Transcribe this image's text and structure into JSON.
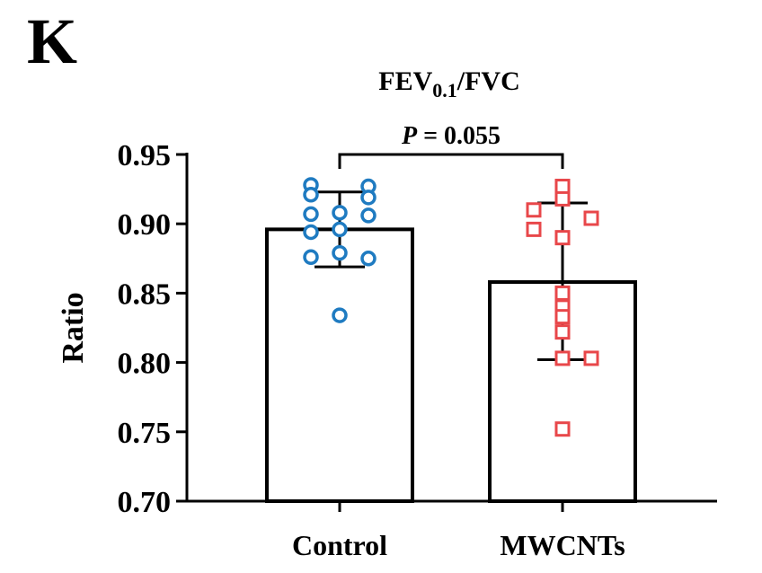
{
  "panel_label": "K",
  "chart_data": {
    "type": "bar",
    "title": "FEV",
    "title_subscript": "0.1",
    "title_suffix": "/FVC",
    "ylabel": "Ratio",
    "xlabel": "",
    "ylim": [
      0.7,
      0.95
    ],
    "yticks": [
      "0.70",
      "0.75",
      "0.80",
      "0.85",
      "0.90",
      "0.95"
    ],
    "ytick_values": [
      0.7,
      0.75,
      0.8,
      0.85,
      0.9,
      0.95
    ],
    "categories": [
      "Control",
      "MWCNTs"
    ],
    "values": [
      0.896,
      0.858
    ],
    "error_bars": [
      {
        "low": 0.869,
        "high": 0.923
      },
      {
        "low": 0.802,
        "high": 0.915
      }
    ],
    "points": [
      [
        0.928,
        0.921,
        0.927,
        0.919,
        0.907,
        0.908,
        0.906,
        0.894,
        0.896,
        0.875,
        0.879,
        0.876,
        0.834
      ],
      [
        0.927,
        0.918,
        0.91,
        0.904,
        0.896,
        0.89,
        0.85,
        0.84,
        0.833,
        0.822,
        0.803,
        0.803,
        0.752
      ]
    ],
    "marker_shapes": [
      "circle",
      "square"
    ],
    "colors": [
      "#1f7bc1",
      "#e8474a"
    ],
    "annotation": {
      "p_symbol": "P",
      "p_text": " = 0.055",
      "between": [
        "Control",
        "MWCNTs"
      ]
    }
  }
}
